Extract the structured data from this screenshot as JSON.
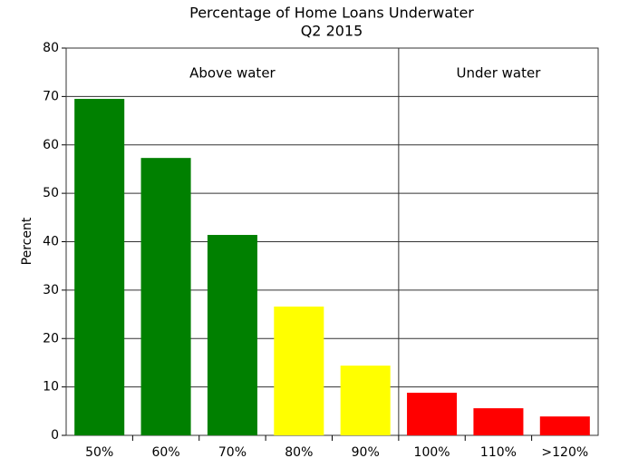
{
  "chart_data": {
    "type": "bar",
    "title": "Percentage of Home Loans Underwater",
    "subtitle": "Q2 2015",
    "y_label": "Percent",
    "categories": [
      "50%",
      "60%",
      "70%",
      "80%",
      "90%",
      "100%",
      "110%",
      ">120%"
    ],
    "values": [
      69.5,
      57.3,
      41.4,
      26.6,
      14.4,
      8.8,
      5.6,
      3.9
    ],
    "colors": [
      "#008000",
      "#008000",
      "#008000",
      "#ffff00",
      "#ffff00",
      "#ff0000",
      "#ff0000",
      "#ff0000"
    ],
    "annotations": [
      "Above water",
      "Under water"
    ],
    "ylim": [
      0,
      80
    ],
    "yticks": [
      0,
      10,
      20,
      30,
      40,
      50,
      60,
      70,
      80
    ],
    "grid": true
  }
}
